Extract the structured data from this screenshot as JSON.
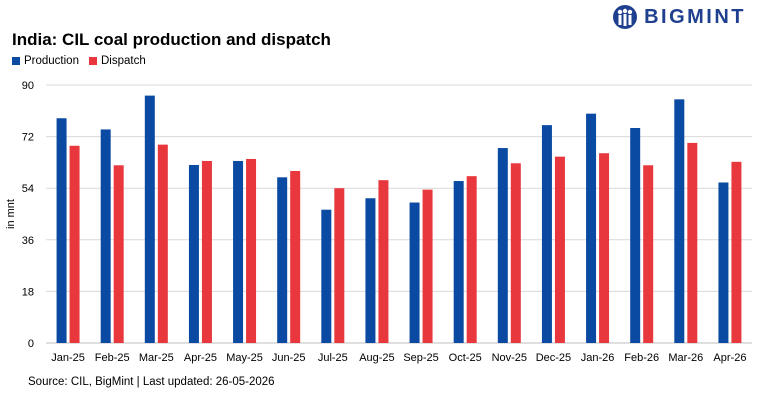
{
  "brand": {
    "name": "BIGMINT",
    "logo_color": "#1f3f8f"
  },
  "source": "Source: CIL, BigMint | Last updated: 26-05-2026",
  "chart_data": {
    "type": "bar",
    "title": "India: CIL coal production and dispatch",
    "ylabel": "in mnt",
    "xlabel": "",
    "ylim": [
      0,
      90
    ],
    "yticks": [
      0,
      18,
      36,
      54,
      72,
      90
    ],
    "grid": true,
    "legend_position": "top-left",
    "categories": [
      "Jan-25",
      "Feb-25",
      "Mar-25",
      "Apr-25",
      "May-25",
      "Jun-25",
      "Jul-25",
      "Aug-25",
      "Sep-25",
      "Oct-25",
      "Nov-25",
      "Dec-25",
      "Jan-26",
      "Feb-26",
      "Mar-26",
      "Apr-26"
    ],
    "series": [
      {
        "name": "Production",
        "color": "#0b4aa2",
        "values": [
          78.4,
          74.5,
          86.3,
          62.1,
          63.5,
          57.8,
          46.5,
          50.5,
          49.0,
          56.5,
          68.0,
          76.0,
          80.0,
          75.0,
          85.0,
          56.0
        ]
      },
      {
        "name": "Dispatch",
        "color": "#e8383d",
        "values": [
          68.8,
          62.0,
          69.2,
          63.5,
          64.2,
          60.0,
          54.0,
          56.8,
          53.5,
          58.2,
          62.7,
          65.0,
          66.2,
          62.0,
          69.8,
          63.2
        ]
      }
    ]
  }
}
